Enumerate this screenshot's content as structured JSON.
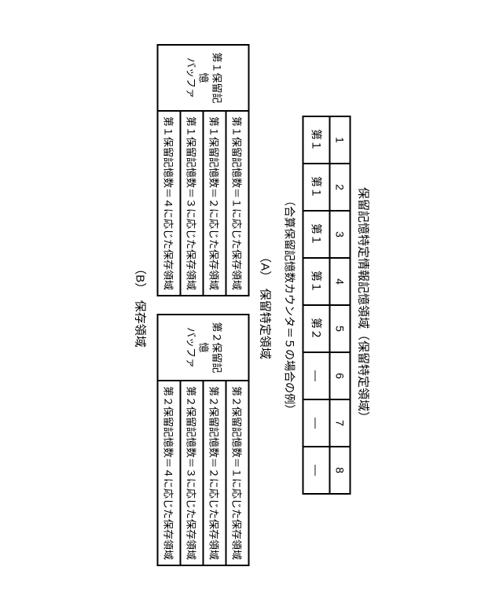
{
  "section_a": {
    "title": "保留記憶特定情報記憶領域（保留特定領域）",
    "label": "（A）　保留特定領域",
    "note": "（合算保留記憶数カウンタ＝５の場合の例）",
    "columns": [
      "1",
      "2",
      "3",
      "4",
      "5",
      "6",
      "7",
      "8"
    ],
    "values": [
      "第１",
      "第１",
      "第１",
      "第１",
      "第２",
      "—",
      "—",
      "—"
    ]
  },
  "section_b": {
    "label": "（B）　保存領域",
    "left": {
      "header": "第１保留記憶\\nバッファ",
      "rows": [
        "第１保留記憶数＝１に応じた保存領域",
        "第１保留記憶数＝２に応じた保存領域",
        "第１保留記憶数＝３に応じた保存領域",
        "第１保留記憶数＝４に応じた保存領域"
      ]
    },
    "right": {
      "header": "第２保留記憶\\nバッファ",
      "rows": [
        "第２保留記憶数＝１に応じた保存領域",
        "第２保留記憶数＝２に応じた保存領域",
        "第２保留記憶数＝３に応じた保存領域",
        "第２保留記憶数＝４に応じた保存領域"
      ]
    }
  },
  "style": {
    "border_color": "#000000",
    "background": "#ffffff",
    "font_family": "MS Gothic",
    "title_fontsize": 15,
    "cell_fontsize": 14,
    "small_fontsize": 13
  }
}
